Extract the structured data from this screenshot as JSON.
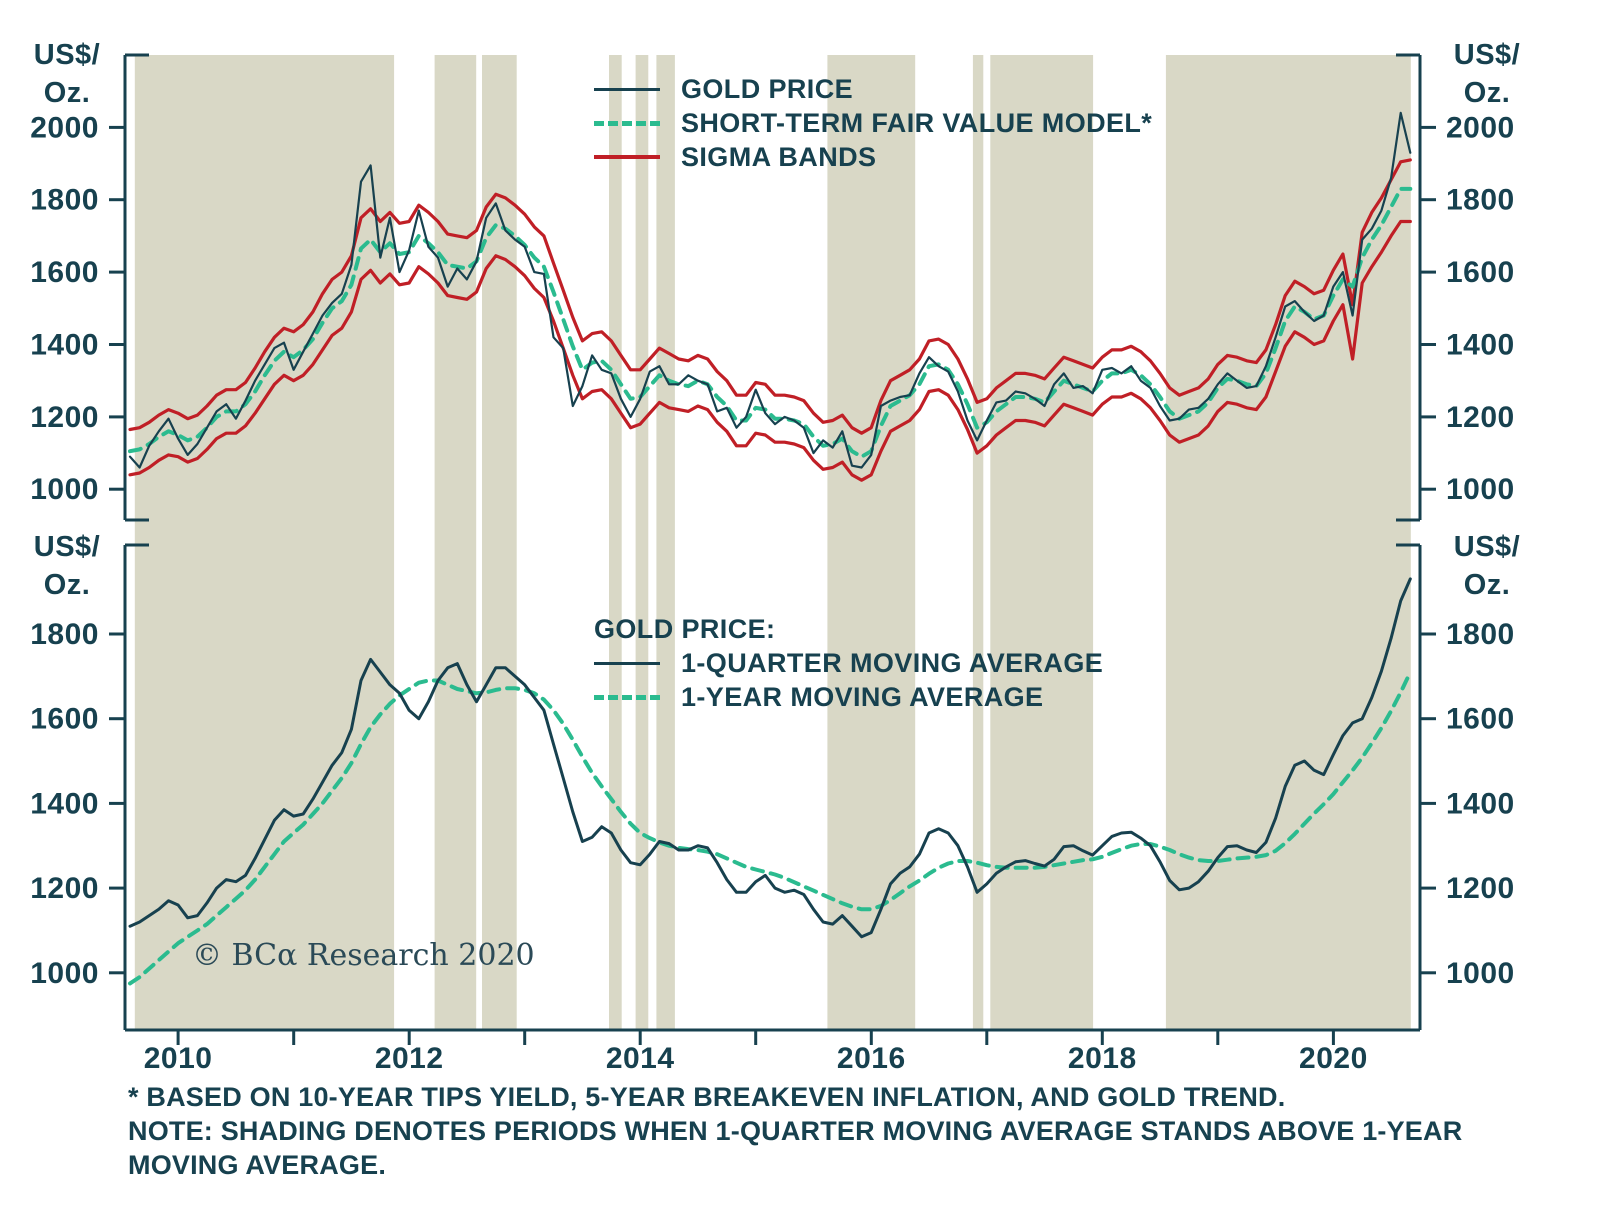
{
  "colors": {
    "navy": "#17414F",
    "green": "#2BBB8F",
    "red": "#C01F26",
    "shading": "#D9D8C6",
    "background": "#FFFFFF"
  },
  "axis_unit_label": {
    "line1": "US$/",
    "line2": "Oz."
  },
  "top_legend": {
    "items": [
      {
        "label": "GOLD PRICE",
        "style": "solid-navy"
      },
      {
        "label": "SHORT-TERM FAIR VALUE MODEL*",
        "style": "dashed-green"
      },
      {
        "label": "SIGMA BANDS",
        "style": "solid-red"
      }
    ]
  },
  "bottom_legend": {
    "title": "GOLD PRICE:",
    "items": [
      {
        "label": "1-QUARTER MOVING AVERAGE",
        "style": "solid-navy"
      },
      {
        "label": "1-YEAR MOVING AVERAGE",
        "style": "dashed-green"
      }
    ]
  },
  "copyright": "© BCα Research 2020",
  "footnotes": [
    "* BASED ON 10-YEAR TIPS YIELD, 5-YEAR BREAKEVEN INFLATION, AND GOLD TREND.",
    "NOTE: SHADING DENOTES PERIODS WHEN 1-QUARTER MOVING AVERAGE STANDS ABOVE 1-YEAR MOVING AVERAGE."
  ],
  "chart_data": [
    {
      "type": "line",
      "name": "gold-price-vs-fair-value",
      "xlim": [
        2009.54,
        2020.75
      ],
      "ylim": [
        915,
        2200
      ],
      "yticks": [
        1000,
        1200,
        1400,
        1600,
        1800,
        2000
      ],
      "x_start": 2009.583,
      "x_step": 0.083333,
      "x_ticks": [
        2010,
        2011,
        2012,
        2013,
        2014,
        2015,
        2016,
        2017,
        2018,
        2019,
        2020
      ],
      "x_labels": [
        {
          "x": 2010,
          "text": "2010"
        },
        {
          "x": 2012,
          "text": "2012"
        },
        {
          "x": 2014,
          "text": "2014"
        },
        {
          "x": 2016,
          "text": "2016"
        },
        {
          "x": 2018,
          "text": "2018"
        },
        {
          "x": 2020,
          "text": "2020"
        }
      ],
      "shaded_regions": [
        [
          2009.625,
          2011.87
        ],
        [
          2012.22,
          2012.58
        ],
        [
          2012.63,
          2012.93
        ],
        [
          2013.73,
          2013.84
        ],
        [
          2013.96,
          2014.07
        ],
        [
          2014.14,
          2014.3
        ],
        [
          2015.62,
          2016.38
        ],
        [
          2016.88,
          2016.97
        ],
        [
          2017.03,
          2017.92
        ],
        [
          2018.55,
          2020.67
        ]
      ],
      "series": [
        {
          "id": "sigma-band-upper-line",
          "name": "SIGMA BAND (UPPER)",
          "color": "#C01F26",
          "dash": null,
          "width": 3.2,
          "values": [
            1165,
            1170,
            1185,
            1205,
            1220,
            1210,
            1195,
            1205,
            1230,
            1260,
            1275,
            1275,
            1295,
            1335,
            1380,
            1420,
            1445,
            1435,
            1455,
            1490,
            1540,
            1580,
            1600,
            1645,
            1750,
            1775,
            1740,
            1765,
            1735,
            1740,
            1785,
            1765,
            1740,
            1705,
            1700,
            1695,
            1715,
            1780,
            1815,
            1805,
            1785,
            1760,
            1725,
            1700,
            1625,
            1550,
            1475,
            1410,
            1430,
            1435,
            1410,
            1370,
            1330,
            1330,
            1360,
            1390,
            1375,
            1360,
            1355,
            1370,
            1360,
            1325,
            1300,
            1260,
            1260,
            1295,
            1290,
            1260,
            1260,
            1255,
            1245,
            1210,
            1185,
            1190,
            1205,
            1170,
            1155,
            1170,
            1245,
            1300,
            1315,
            1330,
            1360,
            1410,
            1415,
            1400,
            1360,
            1305,
            1240,
            1250,
            1280,
            1300,
            1320,
            1320,
            1315,
            1305,
            1335,
            1365,
            1355,
            1345,
            1335,
            1365,
            1385,
            1385,
            1395,
            1380,
            1355,
            1320,
            1280,
            1260,
            1270,
            1280,
            1305,
            1345,
            1370,
            1365,
            1355,
            1350,
            1385,
            1455,
            1535,
            1575,
            1560,
            1540,
            1550,
            1605,
            1650,
            1510,
            1710,
            1765,
            1805,
            1855,
            1905,
            1910
          ]
        },
        {
          "id": "sigma-band-lower-line",
          "name": "SIGMA BAND (LOWER)",
          "color": "#C01F26",
          "dash": null,
          "width": 3.2,
          "values": [
            1040,
            1045,
            1060,
            1080,
            1095,
            1090,
            1075,
            1085,
            1110,
            1140,
            1155,
            1155,
            1175,
            1210,
            1250,
            1290,
            1315,
            1300,
            1315,
            1345,
            1385,
            1425,
            1445,
            1490,
            1580,
            1605,
            1570,
            1595,
            1565,
            1570,
            1615,
            1595,
            1570,
            1535,
            1530,
            1525,
            1545,
            1610,
            1645,
            1635,
            1615,
            1590,
            1555,
            1530,
            1465,
            1390,
            1315,
            1250,
            1270,
            1275,
            1250,
            1210,
            1170,
            1180,
            1210,
            1240,
            1225,
            1220,
            1215,
            1230,
            1220,
            1185,
            1160,
            1120,
            1120,
            1155,
            1150,
            1130,
            1130,
            1125,
            1115,
            1080,
            1055,
            1060,
            1075,
            1040,
            1025,
            1040,
            1105,
            1160,
            1175,
            1190,
            1220,
            1270,
            1275,
            1260,
            1220,
            1165,
            1100,
            1120,
            1150,
            1170,
            1190,
            1190,
            1185,
            1175,
            1205,
            1235,
            1225,
            1215,
            1205,
            1235,
            1255,
            1255,
            1265,
            1250,
            1225,
            1190,
            1150,
            1130,
            1140,
            1150,
            1175,
            1215,
            1240,
            1235,
            1225,
            1220,
            1255,
            1325,
            1395,
            1435,
            1420,
            1400,
            1410,
            1465,
            1510,
            1360,
            1570,
            1615,
            1655,
            1700,
            1740,
            1740
          ]
        },
        {
          "id": "fair-value-model-line",
          "name": "SHORT-TERM FAIR VALUE MODEL",
          "color": "#2BBB8F",
          "dash": "11 8",
          "width": 4,
          "values": [
            1105,
            1110,
            1125,
            1145,
            1160,
            1150,
            1135,
            1145,
            1170,
            1200,
            1215,
            1215,
            1235,
            1270,
            1315,
            1355,
            1380,
            1365,
            1385,
            1415,
            1460,
            1500,
            1520,
            1565,
            1665,
            1690,
            1655,
            1680,
            1650,
            1655,
            1700,
            1680,
            1655,
            1620,
            1615,
            1610,
            1630,
            1695,
            1730,
            1720,
            1700,
            1675,
            1640,
            1615,
            1545,
            1470,
            1395,
            1330,
            1350,
            1355,
            1330,
            1290,
            1250,
            1255,
            1285,
            1315,
            1300,
            1290,
            1285,
            1300,
            1290,
            1255,
            1230,
            1190,
            1190,
            1225,
            1220,
            1195,
            1195,
            1190,
            1180,
            1145,
            1120,
            1125,
            1140,
            1105,
            1090,
            1105,
            1175,
            1230,
            1245,
            1260,
            1290,
            1340,
            1345,
            1330,
            1290,
            1235,
            1170,
            1185,
            1215,
            1235,
            1255,
            1255,
            1250,
            1240,
            1270,
            1300,
            1290,
            1280,
            1270,
            1300,
            1320,
            1320,
            1330,
            1315,
            1290,
            1255,
            1215,
            1195,
            1205,
            1215,
            1240,
            1280,
            1305,
            1300,
            1290,
            1285,
            1320,
            1390,
            1465,
            1505,
            1490,
            1470,
            1480,
            1535,
            1580,
            1560,
            1640,
            1690,
            1730,
            1780,
            1830,
            1830
          ]
        },
        {
          "id": "gold-price-line",
          "name": "GOLD PRICE",
          "color": "#17414F",
          "dash": null,
          "width": 2.2,
          "values": [
            1090,
            1060,
            1120,
            1160,
            1195,
            1140,
            1095,
            1125,
            1170,
            1215,
            1235,
            1195,
            1245,
            1300,
            1345,
            1390,
            1405,
            1330,
            1380,
            1430,
            1480,
            1515,
            1540,
            1620,
            1850,
            1895,
            1640,
            1750,
            1600,
            1660,
            1770,
            1670,
            1640,
            1560,
            1610,
            1580,
            1630,
            1750,
            1790,
            1715,
            1690,
            1670,
            1600,
            1595,
            1420,
            1390,
            1230,
            1285,
            1370,
            1330,
            1320,
            1250,
            1200,
            1250,
            1325,
            1340,
            1290,
            1290,
            1315,
            1300,
            1290,
            1215,
            1225,
            1170,
            1200,
            1275,
            1210,
            1180,
            1200,
            1190,
            1170,
            1100,
            1135,
            1115,
            1160,
            1065,
            1060,
            1095,
            1230,
            1245,
            1255,
            1260,
            1320,
            1365,
            1340,
            1325,
            1270,
            1190,
            1135,
            1190,
            1240,
            1245,
            1270,
            1265,
            1250,
            1230,
            1290,
            1320,
            1280,
            1285,
            1265,
            1330,
            1335,
            1320,
            1340,
            1300,
            1280,
            1230,
            1190,
            1195,
            1220,
            1225,
            1250,
            1290,
            1320,
            1300,
            1280,
            1285,
            1340,
            1420,
            1505,
            1520,
            1490,
            1465,
            1480,
            1560,
            1600,
            1480,
            1690,
            1720,
            1770,
            1860,
            2040,
            1930
          ]
        }
      ]
    },
    {
      "type": "line",
      "name": "gold-price-moving-averages",
      "xlim": [
        2009.54,
        2020.75
      ],
      "ylim": [
        865,
        2010
      ],
      "yticks": [
        1000,
        1200,
        1400,
        1600,
        1800
      ],
      "x_start": 2009.583,
      "x_step": 0.083333,
      "series": [
        {
          "id": "one-year-moving-average-line",
          "name": "1-YEAR MOVING AVERAGE",
          "color": "#2BBB8F",
          "dash": "11 8",
          "width": 4,
          "values": [
            975,
            990,
            1010,
            1030,
            1050,
            1070,
            1085,
            1100,
            1115,
            1135,
            1155,
            1175,
            1195,
            1220,
            1250,
            1280,
            1310,
            1330,
            1350,
            1375,
            1400,
            1430,
            1460,
            1495,
            1540,
            1580,
            1610,
            1635,
            1655,
            1670,
            1685,
            1690,
            1690,
            1680,
            1670,
            1665,
            1660,
            1662,
            1668,
            1672,
            1672,
            1668,
            1660,
            1645,
            1620,
            1588,
            1550,
            1510,
            1472,
            1440,
            1410,
            1380,
            1352,
            1330,
            1318,
            1308,
            1300,
            1295,
            1292,
            1290,
            1286,
            1280,
            1270,
            1260,
            1250,
            1244,
            1238,
            1232,
            1224,
            1214,
            1204,
            1194,
            1184,
            1174,
            1164,
            1156,
            1150,
            1150,
            1158,
            1172,
            1188,
            1204,
            1218,
            1234,
            1248,
            1258,
            1264,
            1264,
            1260,
            1254,
            1250,
            1248,
            1248,
            1248,
            1248,
            1250,
            1254,
            1258,
            1262,
            1266,
            1268,
            1274,
            1283,
            1292,
            1300,
            1304,
            1304,
            1298,
            1290,
            1280,
            1272,
            1266,
            1264,
            1264,
            1267,
            1270,
            1272,
            1274,
            1278,
            1288,
            1306,
            1328,
            1352,
            1376,
            1398,
            1422,
            1450,
            1478,
            1508,
            1542,
            1578,
            1618,
            1662,
            1710
          ]
        },
        {
          "id": "one-quarter-moving-average-line",
          "name": "1-QUARTER MOVING AVERAGE",
          "color": "#17414F",
          "dash": null,
          "width": 3,
          "values": [
            1110,
            1120,
            1135,
            1150,
            1170,
            1160,
            1130,
            1135,
            1165,
            1200,
            1220,
            1215,
            1230,
            1270,
            1315,
            1360,
            1385,
            1370,
            1375,
            1410,
            1450,
            1490,
            1520,
            1575,
            1690,
            1740,
            1710,
            1680,
            1660,
            1620,
            1600,
            1640,
            1690,
            1720,
            1730,
            1680,
            1640,
            1680,
            1720,
            1720,
            1700,
            1680,
            1650,
            1620,
            1540,
            1460,
            1380,
            1310,
            1320,
            1345,
            1330,
            1290,
            1260,
            1255,
            1280,
            1310,
            1305,
            1290,
            1290,
            1300,
            1295,
            1260,
            1220,
            1190,
            1190,
            1215,
            1230,
            1200,
            1190,
            1195,
            1185,
            1150,
            1120,
            1115,
            1135,
            1110,
            1085,
            1095,
            1150,
            1210,
            1235,
            1250,
            1280,
            1330,
            1340,
            1330,
            1300,
            1250,
            1190,
            1210,
            1235,
            1250,
            1262,
            1265,
            1258,
            1252,
            1268,
            1298,
            1300,
            1288,
            1278,
            1300,
            1322,
            1330,
            1332,
            1318,
            1300,
            1262,
            1218,
            1196,
            1200,
            1215,
            1240,
            1272,
            1298,
            1300,
            1290,
            1284,
            1308,
            1365,
            1440,
            1490,
            1500,
            1478,
            1468,
            1515,
            1560,
            1590,
            1600,
            1650,
            1712,
            1790,
            1878,
            1930
          ]
        }
      ]
    }
  ]
}
